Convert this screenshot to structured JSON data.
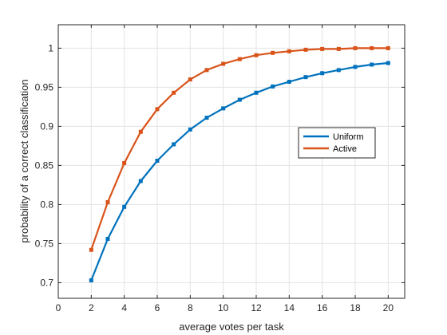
{
  "chart_data": {
    "type": "line",
    "xlabel": "average votes per task",
    "ylabel": "probability of a correct classification",
    "xlim": [
      0,
      21
    ],
    "ylim": [
      0.68,
      1.03
    ],
    "xticks": [
      0,
      2,
      4,
      6,
      8,
      10,
      12,
      14,
      16,
      18,
      20
    ],
    "yticks": [
      0.7,
      0.75,
      0.8,
      0.85,
      0.9,
      0.95,
      1
    ],
    "ytick_labels": [
      "0.7",
      "0.75",
      "0.8",
      "0.85",
      "0.9",
      "0.95",
      "1"
    ],
    "grid": true,
    "legend_position": "right",
    "x": [
      2,
      3,
      4,
      5,
      6,
      7,
      8,
      9,
      10,
      11,
      12,
      13,
      14,
      15,
      16,
      17,
      18,
      19,
      20
    ],
    "series": [
      {
        "name": "Uniform",
        "color": "#0072BD",
        "values": [
          0.703,
          0.756,
          0.797,
          0.83,
          0.856,
          0.877,
          0.896,
          0.911,
          0.923,
          0.934,
          0.943,
          0.951,
          0.957,
          0.963,
          0.968,
          0.972,
          0.976,
          0.979,
          0.981
        ]
      },
      {
        "name": "Active",
        "color": "#D95319",
        "values": [
          0.742,
          0.803,
          0.853,
          0.893,
          0.922,
          0.943,
          0.96,
          0.972,
          0.98,
          0.986,
          0.991,
          0.994,
          0.996,
          0.998,
          0.999,
          0.999,
          1.0,
          1.0,
          1.0
        ]
      }
    ]
  }
}
